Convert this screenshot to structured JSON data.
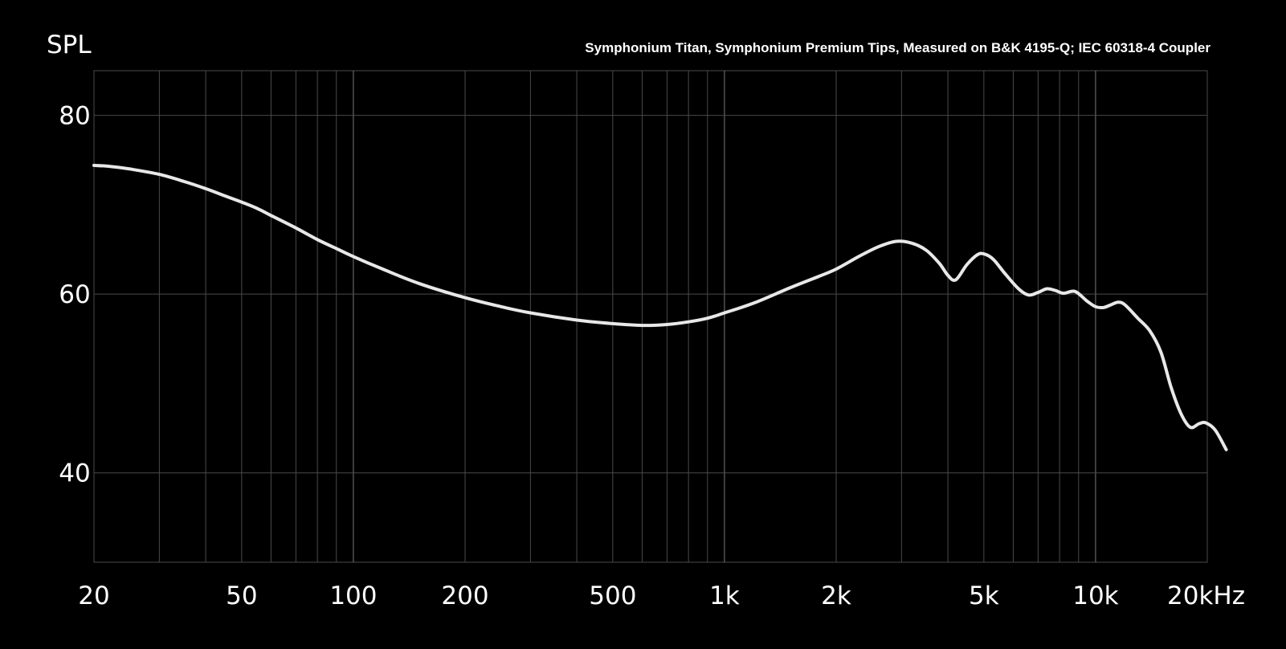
{
  "chart_data": {
    "type": "line",
    "title": "Symphonium Titan, Symphonium Premium Tips, Measured on B&K 4195-Q; IEC 60318-4 Coupler",
    "ylabel": "SPL",
    "xlabel": "",
    "xscale": "log",
    "xlim": [
      20,
      20000
    ],
    "ylim": [
      30,
      85
    ],
    "grid": true,
    "x_ticks": [
      {
        "value": 20,
        "label": "20"
      },
      {
        "value": 50,
        "label": "50"
      },
      {
        "value": 100,
        "label": "100"
      },
      {
        "value": 200,
        "label": "200"
      },
      {
        "value": 500,
        "label": "500"
      },
      {
        "value": 1000,
        "label": "1k"
      },
      {
        "value": 2000,
        "label": "2k"
      },
      {
        "value": 5000,
        "label": "5k"
      },
      {
        "value": 10000,
        "label": "10k"
      },
      {
        "value": 20000,
        "label": "20kHz"
      }
    ],
    "y_ticks": [
      {
        "value": 80,
        "label": "80"
      },
      {
        "value": 60,
        "label": "60"
      },
      {
        "value": 40,
        "label": "40"
      }
    ],
    "colors": {
      "background": "#000000",
      "line": "#e8e8e8",
      "grid": "#4a4a4a",
      "grid_major": "#7a7a7a",
      "text": "#ffffff"
    },
    "series": [
      {
        "points": [
          [
            20,
            74.4
          ],
          [
            22,
            74.3
          ],
          [
            25,
            74.0
          ],
          [
            30,
            73.4
          ],
          [
            35,
            72.6
          ],
          [
            40,
            71.8
          ],
          [
            45,
            71.0
          ],
          [
            50,
            70.3
          ],
          [
            55,
            69.6
          ],
          [
            60,
            68.8
          ],
          [
            70,
            67.4
          ],
          [
            80,
            66.1
          ],
          [
            90,
            65.1
          ],
          [
            100,
            64.2
          ],
          [
            120,
            62.8
          ],
          [
            150,
            61.2
          ],
          [
            200,
            59.6
          ],
          [
            250,
            58.6
          ],
          [
            300,
            57.9
          ],
          [
            400,
            57.1
          ],
          [
            500,
            56.7
          ],
          [
            600,
            56.5
          ],
          [
            700,
            56.6
          ],
          [
            800,
            56.9
          ],
          [
            900,
            57.3
          ],
          [
            1000,
            57.9
          ],
          [
            1200,
            59.0
          ],
          [
            1500,
            60.7
          ],
          [
            1800,
            62.0
          ],
          [
            2000,
            62.8
          ],
          [
            2300,
            64.2
          ],
          [
            2600,
            65.3
          ],
          [
            2900,
            65.9
          ],
          [
            3200,
            65.7
          ],
          [
            3500,
            64.9
          ],
          [
            3800,
            63.4
          ],
          [
            4000,
            62.1
          ],
          [
            4200,
            61.6
          ],
          [
            4500,
            63.3
          ],
          [
            4800,
            64.4
          ],
          [
            5000,
            64.5
          ],
          [
            5300,
            63.9
          ],
          [
            5700,
            62.3
          ],
          [
            6200,
            60.6
          ],
          [
            6600,
            59.9
          ],
          [
            7000,
            60.2
          ],
          [
            7400,
            60.6
          ],
          [
            7800,
            60.4
          ],
          [
            8200,
            60.1
          ],
          [
            8800,
            60.3
          ],
          [
            9500,
            59.2
          ],
          [
            10000,
            58.6
          ],
          [
            10500,
            58.5
          ],
          [
            11000,
            58.8
          ],
          [
            11500,
            59.1
          ],
          [
            12000,
            58.8
          ],
          [
            13000,
            57.3
          ],
          [
            14000,
            55.9
          ],
          [
            15000,
            53.5
          ],
          [
            16000,
            49.5
          ],
          [
            17000,
            46.6
          ],
          [
            18000,
            45.1
          ],
          [
            19000,
            45.5
          ],
          [
            19800,
            45.6
          ],
          [
            21000,
            44.8
          ],
          [
            22500,
            42.6
          ]
        ]
      }
    ]
  }
}
